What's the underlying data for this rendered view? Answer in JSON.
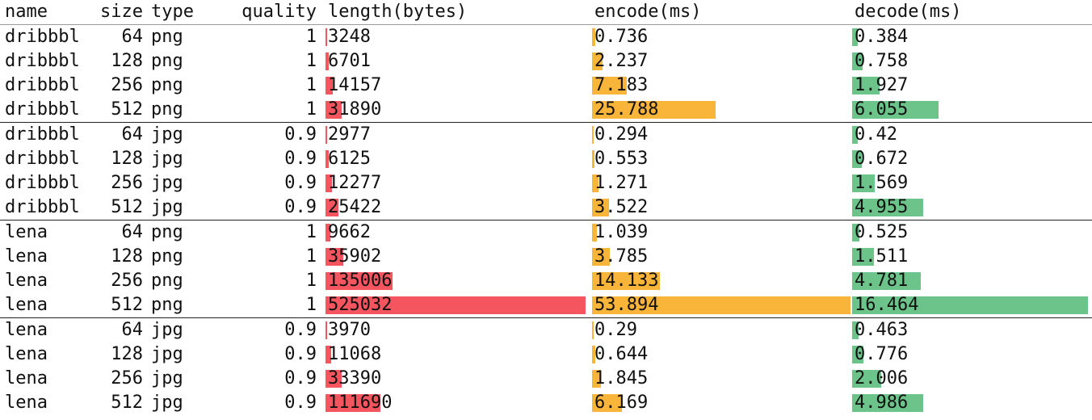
{
  "header": {
    "name": "name",
    "size": "size",
    "type": "type",
    "quality": "quality",
    "length": "length(bytes)",
    "encode": "encode(ms)",
    "decode": "decode(ms)"
  },
  "colors": {
    "length_bar": "#f5555f",
    "encode_bar": "#f9b53a",
    "decode_bar": "#6cc48a",
    "rule": "#222222",
    "header_rule": "#9a9a9a"
  },
  "scale_max": {
    "length": 525032,
    "encode": 53.894,
    "decode": 16.464
  },
  "groups": [
    {
      "rows": [
        {
          "name": "dribbbl",
          "size": "64",
          "type": "png",
          "quality": "1",
          "length": "3248",
          "encode": "0.736",
          "decode": "0.384"
        },
        {
          "name": "dribbbl",
          "size": "128",
          "type": "png",
          "quality": "1",
          "length": "6701",
          "encode": "2.237",
          "decode": "0.758"
        },
        {
          "name": "dribbbl",
          "size": "256",
          "type": "png",
          "quality": "1",
          "length": "14157",
          "encode": "7.183",
          "decode": "1.927"
        },
        {
          "name": "dribbbl",
          "size": "512",
          "type": "png",
          "quality": "1",
          "length": "31890",
          "encode": "25.788",
          "decode": "6.055"
        }
      ]
    },
    {
      "rows": [
        {
          "name": "dribbbl",
          "size": "64",
          "type": "jpg",
          "quality": "0.9",
          "length": "2977",
          "encode": "0.294",
          "decode": "0.42"
        },
        {
          "name": "dribbbl",
          "size": "128",
          "type": "jpg",
          "quality": "0.9",
          "length": "6125",
          "encode": "0.553",
          "decode": "0.672"
        },
        {
          "name": "dribbbl",
          "size": "256",
          "type": "jpg",
          "quality": "0.9",
          "length": "12277",
          "encode": "1.271",
          "decode": "1.569"
        },
        {
          "name": "dribbbl",
          "size": "512",
          "type": "jpg",
          "quality": "0.9",
          "length": "25422",
          "encode": "3.522",
          "decode": "4.955"
        }
      ]
    },
    {
      "rows": [
        {
          "name": "lena",
          "size": "64",
          "type": "png",
          "quality": "1",
          "length": "9662",
          "encode": "1.039",
          "decode": "0.525"
        },
        {
          "name": "lena",
          "size": "128",
          "type": "png",
          "quality": "1",
          "length": "35902",
          "encode": "3.785",
          "decode": "1.511"
        },
        {
          "name": "lena",
          "size": "256",
          "type": "png",
          "quality": "1",
          "length": "135006",
          "encode": "14.133",
          "decode": "4.781"
        },
        {
          "name": "lena",
          "size": "512",
          "type": "png",
          "quality": "1",
          "length": "525032",
          "encode": "53.894",
          "decode": "16.464"
        }
      ]
    },
    {
      "rows": [
        {
          "name": "lena",
          "size": "64",
          "type": "jpg",
          "quality": "0.9",
          "length": "3970",
          "encode": "0.29",
          "decode": "0.463"
        },
        {
          "name": "lena",
          "size": "128",
          "type": "jpg",
          "quality": "0.9",
          "length": "11068",
          "encode": "0.644",
          "decode": "0.776"
        },
        {
          "name": "lena",
          "size": "256",
          "type": "jpg",
          "quality": "0.9",
          "length": "33390",
          "encode": "1.845",
          "decode": "2.006"
        },
        {
          "name": "lena",
          "size": "512",
          "type": "jpg",
          "quality": "0.9",
          "length": "111690",
          "encode": "6.169",
          "decode": "4.986"
        }
      ]
    }
  ]
}
